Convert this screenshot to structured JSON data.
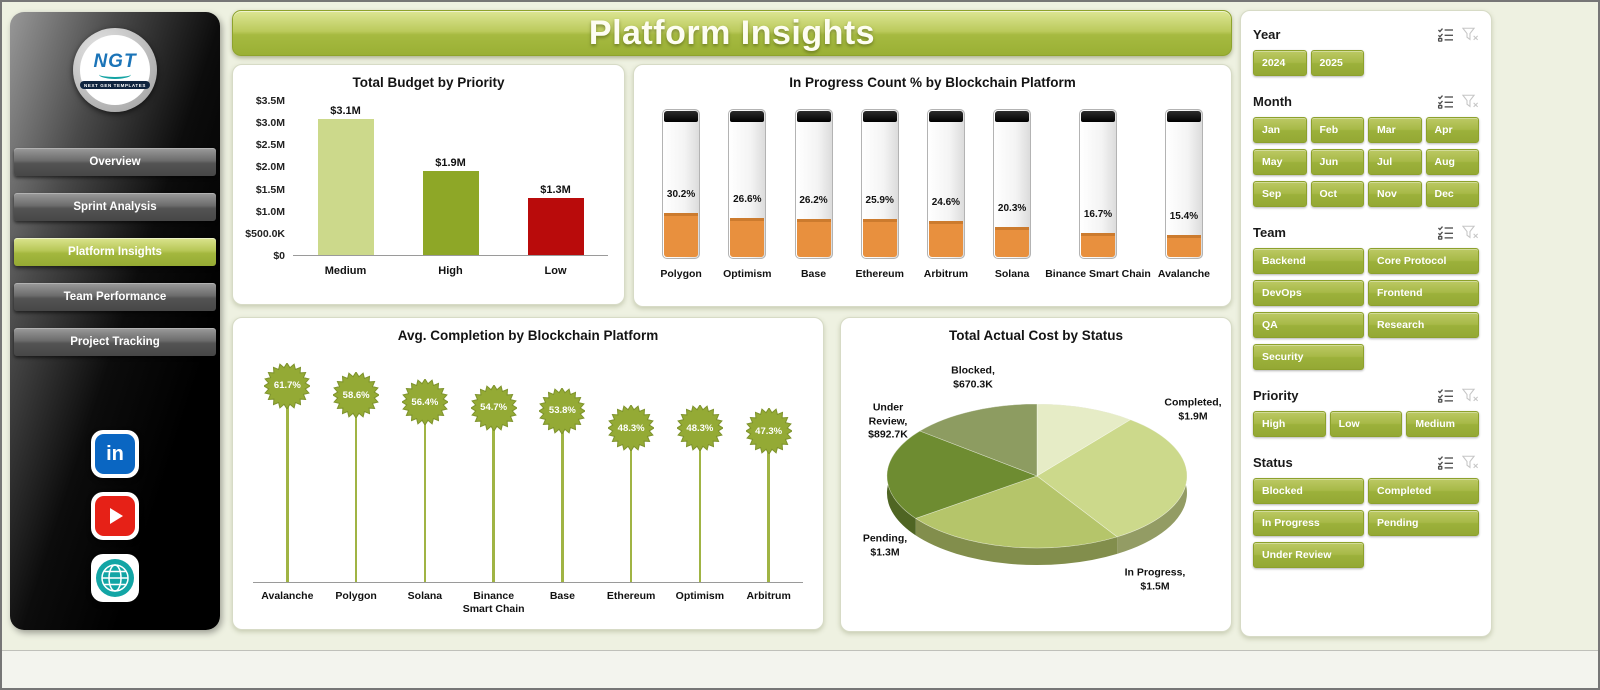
{
  "app": {
    "title": "Platform Insights"
  },
  "sidebar": {
    "logo": {
      "text": "NGT",
      "subtext": "NEXT GEN TEMPLATES"
    },
    "items": [
      {
        "label": "Overview",
        "active": false
      },
      {
        "label": "Sprint Analysis",
        "active": false
      },
      {
        "label": "Platform Insights",
        "active": true
      },
      {
        "label": "Team Performance",
        "active": false
      },
      {
        "label": "Project Tracking",
        "active": false
      }
    ],
    "social": [
      "linkedin",
      "youtube",
      "website"
    ]
  },
  "filters": {
    "sections": [
      {
        "title": "Year",
        "cols": 4,
        "options": [
          "2024",
          "2025"
        ]
      },
      {
        "title": "Month",
        "cols": 4,
        "options": [
          "Jan",
          "Feb",
          "Mar",
          "Apr",
          "May",
          "Jun",
          "Jul",
          "Aug",
          "Sep",
          "Oct",
          "Nov",
          "Dec"
        ]
      },
      {
        "title": "Team",
        "cols": 2,
        "options": [
          "Backend",
          "Core Protocol",
          "DevOps",
          "Frontend",
          "QA",
          "Research",
          "Security"
        ]
      },
      {
        "title": "Priority",
        "cols": 3,
        "options": [
          "High",
          "Low",
          "Medium"
        ]
      },
      {
        "title": "Status",
        "cols": 2,
        "options": [
          "Blocked",
          "Completed",
          "In Progress",
          "Pending",
          "Under Review"
        ]
      }
    ]
  },
  "chart_data": [
    {
      "type": "bar",
      "title": "Total Budget by Priority",
      "categories": [
        "Medium",
        "High",
        "Low"
      ],
      "values": [
        3.1,
        1.9,
        1.3
      ],
      "value_labels": [
        "$3.1M",
        "$1.9M",
        "$1.3M"
      ],
      "colors": [
        "#ccd98b",
        "#8ea727",
        "#b90b0b"
      ],
      "y_ticks": [
        "$3.5M",
        "$3.0M",
        "$2.5M",
        "$2.0M",
        "$1.5M",
        "$1.0M",
        "$500.0K",
        "$0"
      ],
      "ylabel": "",
      "xlabel": "",
      "ylim": [
        0,
        3.5
      ],
      "grid": false
    },
    {
      "type": "thermometer-column",
      "title": "In Progress Count % by Blockchain Platform",
      "categories": [
        "Polygon",
        "Optimism",
        "Base",
        "Ethereum",
        "Arbitrum",
        "Solana",
        "Binance Smart Chain",
        "Avalanche"
      ],
      "values": [
        30.2,
        26.6,
        26.2,
        25.9,
        24.6,
        20.3,
        16.7,
        15.4
      ],
      "value_labels": [
        "30.2%",
        "26.6%",
        "26.2%",
        "25.9%",
        "24.6%",
        "20.3%",
        "16.7%",
        "15.4%"
      ],
      "fill_color": "#e8903e",
      "ylim": [
        0,
        100
      ],
      "grid": false
    },
    {
      "type": "lollipop",
      "title": "Avg. Completion by Blockchain Platform",
      "categories": [
        "Avalanche",
        "Polygon",
        "Solana",
        "Binance Smart Chain",
        "Base",
        "Ethereum",
        "Optimism",
        "Arbitrum"
      ],
      "values": [
        61.7,
        58.6,
        56.4,
        54.7,
        53.8,
        48.3,
        48.3,
        47.3
      ],
      "value_labels": [
        "61.7%",
        "58.6%",
        "56.4%",
        "54.7%",
        "53.8%",
        "48.3%",
        "48.3%",
        "47.3%"
      ],
      "color": "#94aa35",
      "ylim": [
        0,
        65
      ],
      "grid": false
    },
    {
      "type": "pie",
      "style": "3d",
      "title": "Total Actual Cost by Status",
      "labels": [
        "Blocked",
        "Completed",
        "In Progress",
        "Pending",
        "Under Review"
      ],
      "values_k": [
        670.3,
        1900,
        1500,
        1300,
        892.7
      ],
      "slice_labels": [
        "Blocked, $670.3K",
        "Completed, $1.9M",
        "In Progress, $1.5M",
        "Pending, $1.3M",
        "Under Review, $892.7K"
      ],
      "colors": [
        "#e6ecc6",
        "#ccd98b",
        "#b5c56a",
        "#6e8c31",
        "#8d9c61"
      ],
      "legend_position": "none"
    }
  ],
  "theme": {
    "accent_green": "#9cb13b",
    "bar_red": "#b90b0b",
    "thermo_orange": "#e8903e"
  }
}
